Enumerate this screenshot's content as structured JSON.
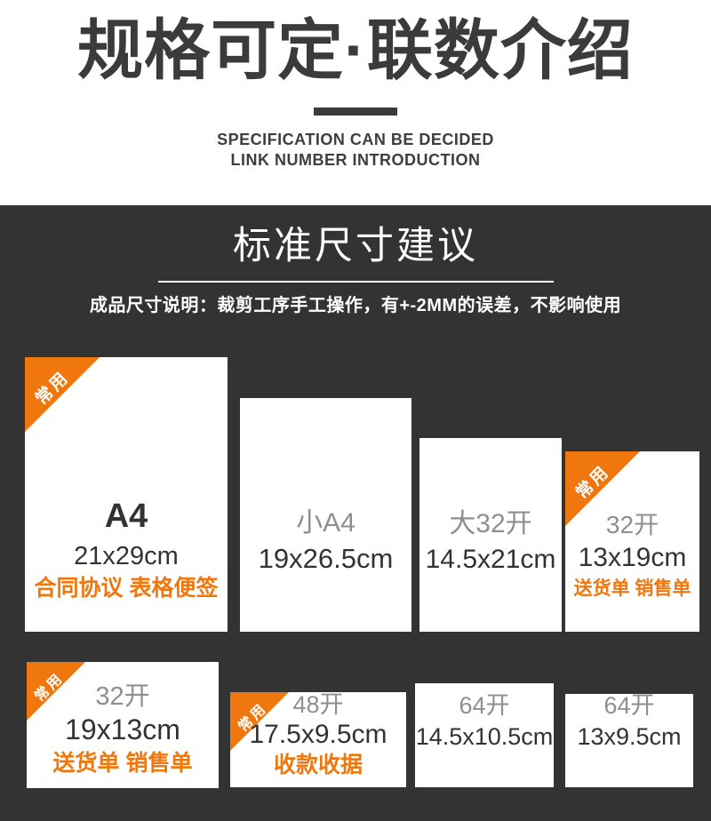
{
  "header": {
    "title": "规格可定·联数介绍",
    "subtitle_line1": "SPECIFICATION CAN BE DECIDED",
    "subtitle_line2": "LINK NUMBER INTRODUCTION"
  },
  "size_section": {
    "heading": "标准尺寸建议",
    "note": "成品尺寸说明：裁剪工序手工操作，有+-2MM的误差，不影响使用"
  },
  "colors": {
    "accent_orange": "#f0770e",
    "dark_background": "#333333",
    "text_dark": "#333333",
    "text_gray": "#8f8f8f"
  },
  "cards": [
    {
      "tag": "常用",
      "name": "A4",
      "size": "21x29cm",
      "use": "合同协议 表格便签"
    },
    {
      "name": "小A4",
      "size": "19x26.5cm"
    },
    {
      "name": "大32开",
      "size": "14.5x21cm"
    },
    {
      "tag": "常用",
      "name": "32开",
      "size": "13x19cm",
      "use": "送货单 销售单"
    },
    {
      "tag": "常用",
      "name": "32开",
      "size": "19x13cm",
      "use": "送货单 销售单"
    },
    {
      "tag": "常用",
      "name": "48开",
      "size": "17.5x9.5cm",
      "use": "收款收据"
    },
    {
      "name": "64开",
      "size": "14.5x10.5cm"
    },
    {
      "name": "64开",
      "size": "13x9.5cm"
    }
  ]
}
